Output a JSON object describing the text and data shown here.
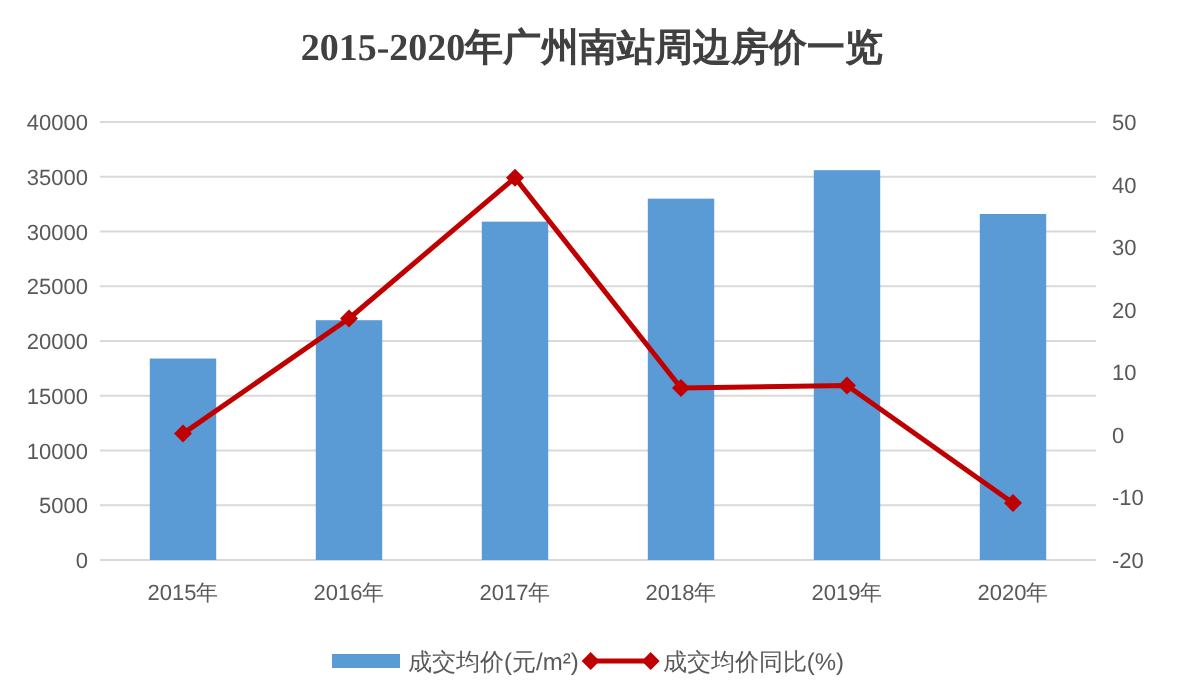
{
  "chart_data": {
    "type": "bar",
    "title": "2015-2020年广州南站周边房价一览",
    "categories": [
      "2015年",
      "2016年",
      "2017年",
      "2018年",
      "2019年",
      "2020年"
    ],
    "series": [
      {
        "name": "成交均价(元/m²)",
        "color": "#5b9bd5",
        "values": [
          18400,
          21900,
          30900,
          33000,
          35600,
          31600
        ]
      },
      {
        "name": "成交均价同比(%)",
        "type": "line",
        "axis": "y2",
        "color": "#c00000",
        "marker": "diamond",
        "values": [
          0.2,
          18.6,
          41.1,
          7.5,
          7.9,
          -10.9
        ]
      }
    ],
    "ylim": [
      0,
      40000
    ],
    "yticks": [
      0,
      5000,
      10000,
      15000,
      20000,
      25000,
      30000,
      35000,
      40000
    ],
    "y2lim": [
      -20,
      50
    ],
    "y2ticks": [
      -20,
      -10,
      0,
      10,
      20,
      30,
      40,
      50
    ],
    "grid": "y",
    "legend": "bottom"
  }
}
